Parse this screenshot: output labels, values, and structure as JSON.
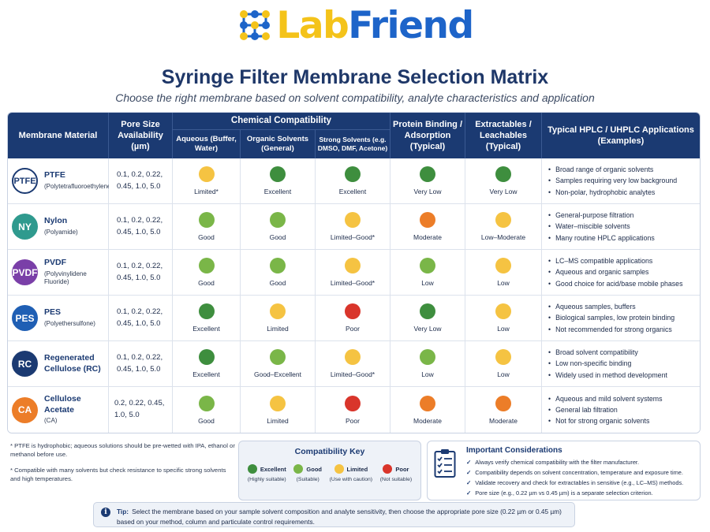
{
  "brand": {
    "lab": "Lab",
    "friend": "Friend"
  },
  "title": "Syringe Filter Membrane Selection Matrix",
  "subtitle": "Choose the right membrane based on solvent compatibility, analyte characteristics and application",
  "colors": {
    "header_bg": "#1b3a72",
    "excellent": "#3e8e3e",
    "good": "#7ab648",
    "limited": "#f5c342",
    "poor": "#d9352b",
    "moderate": "#ec7d28"
  },
  "headers": {
    "material": "Membrane Material",
    "pore": "Pore Size Availability (µm)",
    "chem_group": "Chemical Compatibility",
    "aqueous": "Aqueous (Buffer, Water)",
    "organic": "Organic Solvents (General)",
    "strong": "Strong Solvents (e.g. DMSO, DMF, Acetone)",
    "binding": "Protein Binding / Adsorption (Typical)",
    "extractables": "Extractables / Leachables (Typical)",
    "apps": "Typical HPLC / UHPLC Applications (Examples)"
  },
  "rows": [
    {
      "badge": "PTFE",
      "badge_color": "outline",
      "name": "PTFE",
      "subname": "(Polytetrafluoroethylene)",
      "pore": "0.1, 0.2, 0.22, 0.45, 1.0, 5.0",
      "aqueous": {
        "rating": "limited",
        "label": "Limited*"
      },
      "organic": {
        "rating": "excellent",
        "label": "Excellent"
      },
      "strong": {
        "rating": "excellent",
        "label": "Excellent"
      },
      "binding": {
        "rating": "excellent",
        "label": "Very Low"
      },
      "extractables": {
        "rating": "excellent",
        "label": "Very Low"
      },
      "apps": [
        "Broad range of organic solvents",
        "Samples requiring very low background",
        "Non-polar, hydrophobic analytes"
      ]
    },
    {
      "badge": "NY",
      "badge_color": "#2f9a8e",
      "name": "Nylon",
      "subname": "(Polyamide)",
      "pore": "0.1, 0.2, 0.22, 0.45, 1.0, 5.0",
      "aqueous": {
        "rating": "good",
        "label": "Good"
      },
      "organic": {
        "rating": "good",
        "label": "Good"
      },
      "strong": {
        "rating": "limited",
        "label": "Limited–Good*"
      },
      "binding": {
        "rating": "moderate",
        "label": "Moderate"
      },
      "extractables": {
        "rating": "limited",
        "label": "Low–Moderate"
      },
      "apps": [
        "General-purpose filtration",
        "Water–miscible solvents",
        "Many routine HPLC applications"
      ]
    },
    {
      "badge": "PVDF",
      "badge_color": "#7a3fa8",
      "name": "PVDF",
      "subname": "(Polyvinylidene Fluoride)",
      "pore": "0.1, 0.2, 0.22, 0.45, 1.0, 5.0",
      "aqueous": {
        "rating": "good",
        "label": "Good"
      },
      "organic": {
        "rating": "good",
        "label": "Good"
      },
      "strong": {
        "rating": "limited",
        "label": "Limited–Good*"
      },
      "binding": {
        "rating": "good",
        "label": "Low"
      },
      "extractables": {
        "rating": "limited",
        "label": "Low"
      },
      "apps": [
        "LC–MS compatible applications",
        "Aqueous and organic samples",
        "Good choice for acid/base mobile phases"
      ]
    },
    {
      "badge": "PES",
      "badge_color": "#1f5fb4",
      "name": "PES",
      "subname": "(Polyethersulfone)",
      "pore": "0.1, 0.2, 0.22, 0.45, 1.0, 5.0",
      "aqueous": {
        "rating": "excellent",
        "label": "Excellent"
      },
      "organic": {
        "rating": "limited",
        "label": "Limited"
      },
      "strong": {
        "rating": "poor",
        "label": "Poor"
      },
      "binding": {
        "rating": "excellent",
        "label": "Very Low"
      },
      "extractables": {
        "rating": "limited",
        "label": "Low"
      },
      "apps": [
        "Aqueous samples, buffers",
        "Biological samples, low protein binding",
        "Not recommended for strong organics"
      ]
    },
    {
      "badge": "RC",
      "badge_color": "#1b3a72",
      "name": "Regenerated Cellulose (RC)",
      "subname": "",
      "pore": "0.1, 0.2, 0.22, 0.45, 1.0, 5.0",
      "aqueous": {
        "rating": "excellent",
        "label": "Excellent"
      },
      "organic": {
        "rating": "good",
        "label": "Good–Excellent"
      },
      "strong": {
        "rating": "limited",
        "label": "Limited–Good*"
      },
      "binding": {
        "rating": "good",
        "label": "Low"
      },
      "extractables": {
        "rating": "limited",
        "label": "Low"
      },
      "apps": [
        "Broad solvent compatibility",
        "Low non-specific binding",
        "Widely used in method development"
      ]
    },
    {
      "badge": "CA",
      "badge_color": "#ec7d28",
      "name": "Cellulose Acetate",
      "subname": "(CA)",
      "pore": "0.2, 0.22, 0.45, 1.0, 5.0",
      "aqueous": {
        "rating": "good",
        "label": "Good"
      },
      "organic": {
        "rating": "limited",
        "label": "Limited"
      },
      "strong": {
        "rating": "poor",
        "label": "Poor"
      },
      "binding": {
        "rating": "moderate",
        "label": "Moderate"
      },
      "extractables": {
        "rating": "moderate",
        "label": "Moderate"
      },
      "apps": [
        "Aqueous and mild solvent systems",
        "General lab filtration",
        "Not for strong organic solvents"
      ]
    }
  ],
  "footnotes": [
    "* PTFE is hydrophobic; aqueous solutions should be pre-wetted with IPA, ethanol or methanol before use.",
    "* Compatible with many solvents but check resistance to specific strong solvents and high temperatures."
  ],
  "key": {
    "title": "Compatibility Key",
    "items": [
      {
        "rating": "excellent",
        "label": "Excellent",
        "desc": "(Highly suitable)"
      },
      {
        "rating": "good",
        "label": "Good",
        "desc": "(Suitable)"
      },
      {
        "rating": "limited",
        "label": "Limited",
        "desc": "(Use with caution)"
      },
      {
        "rating": "poor",
        "label": "Poor",
        "desc": "(Not suitable)"
      }
    ]
  },
  "considerations": {
    "title": "Important Considerations",
    "items": [
      "Always verify chemical compatibility with the filter manufacturer.",
      "Compatibility depends on solvent concentration, temperature and exposure time.",
      "Validate recovery and check for extractables in sensitive (e.g., LC–MS) methods.",
      "Pore size (e.g., 0.22 µm vs 0.45 µm) is a separate selection criterion."
    ]
  },
  "tip": {
    "label": "Tip:",
    "text": "Select the membrane based on your sample solvent composition and analyte sensitivity, then choose the appropriate pore size (0.22 µm or 0.45 µm) based on your method, column and particulate control requirements."
  }
}
